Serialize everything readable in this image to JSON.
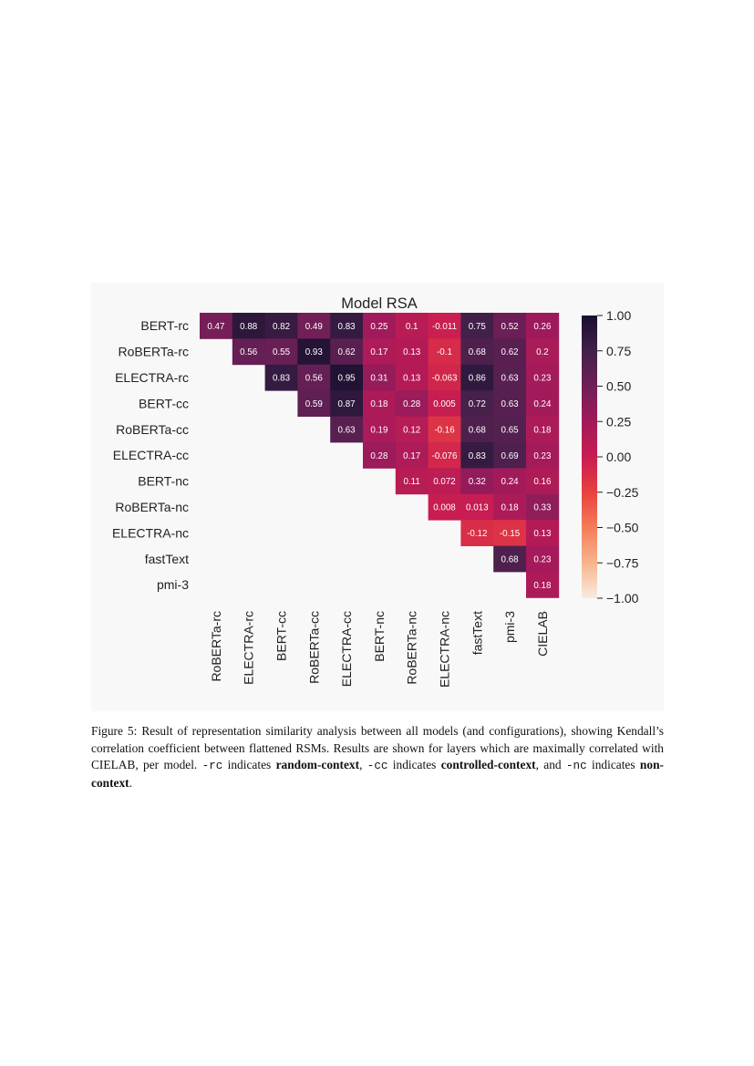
{
  "chart_data": {
    "type": "heatmap",
    "title": "Model RSA",
    "xlabel": "",
    "ylabel": "",
    "rows": [
      "BERT-rc",
      "RoBERTa-rc",
      "ELECTRA-rc",
      "BERT-cc",
      "RoBERTa-cc",
      "ELECTRA-cc",
      "BERT-nc",
      "RoBERTa-nc",
      "ELECTRA-nc",
      "fastText",
      "pmi-3"
    ],
    "columns": [
      "RoBERTa-rc",
      "ELECTRA-rc",
      "BERT-cc",
      "RoBERTa-cc",
      "ELECTRA-cc",
      "BERT-nc",
      "RoBERTa-nc",
      "ELECTRA-nc",
      "fastText",
      "pmi-3",
      "CIELAB"
    ],
    "cells": [
      {
        "row": 0,
        "col": 0,
        "value": 0.47,
        "label": "0.47"
      },
      {
        "row": 0,
        "col": 1,
        "value": 0.88,
        "label": "0.88"
      },
      {
        "row": 0,
        "col": 2,
        "value": 0.82,
        "label": "0.82"
      },
      {
        "row": 0,
        "col": 3,
        "value": 0.49,
        "label": "0.49"
      },
      {
        "row": 0,
        "col": 4,
        "value": 0.83,
        "label": "0.83"
      },
      {
        "row": 0,
        "col": 5,
        "value": 0.25,
        "label": "0.25"
      },
      {
        "row": 0,
        "col": 6,
        "value": 0.1,
        "label": "0.1"
      },
      {
        "row": 0,
        "col": 7,
        "value": -0.011,
        "label": "-0.011"
      },
      {
        "row": 0,
        "col": 8,
        "value": 0.75,
        "label": "0.75"
      },
      {
        "row": 0,
        "col": 9,
        "value": 0.52,
        "label": "0.52"
      },
      {
        "row": 0,
        "col": 10,
        "value": 0.26,
        "label": "0.26"
      },
      {
        "row": 1,
        "col": 1,
        "value": 0.56,
        "label": "0.56"
      },
      {
        "row": 1,
        "col": 2,
        "value": 0.55,
        "label": "0.55"
      },
      {
        "row": 1,
        "col": 3,
        "value": 0.93,
        "label": "0.93"
      },
      {
        "row": 1,
        "col": 4,
        "value": 0.62,
        "label": "0.62"
      },
      {
        "row": 1,
        "col": 5,
        "value": 0.17,
        "label": "0.17"
      },
      {
        "row": 1,
        "col": 6,
        "value": 0.13,
        "label": "0.13"
      },
      {
        "row": 1,
        "col": 7,
        "value": -0.1,
        "label": "-0.1"
      },
      {
        "row": 1,
        "col": 8,
        "value": 0.68,
        "label": "0.68"
      },
      {
        "row": 1,
        "col": 9,
        "value": 0.62,
        "label": "0.62"
      },
      {
        "row": 1,
        "col": 10,
        "value": 0.2,
        "label": "0.2"
      },
      {
        "row": 2,
        "col": 2,
        "value": 0.83,
        "label": "0.83"
      },
      {
        "row": 2,
        "col": 3,
        "value": 0.56,
        "label": "0.56"
      },
      {
        "row": 2,
        "col": 4,
        "value": 0.95,
        "label": "0.95"
      },
      {
        "row": 2,
        "col": 5,
        "value": 0.31,
        "label": "0.31"
      },
      {
        "row": 2,
        "col": 6,
        "value": 0.13,
        "label": "0.13"
      },
      {
        "row": 2,
        "col": 7,
        "value": -0.063,
        "label": "-0.063"
      },
      {
        "row": 2,
        "col": 8,
        "value": 0.86,
        "label": "0.86"
      },
      {
        "row": 2,
        "col": 9,
        "value": 0.63,
        "label": "0.63"
      },
      {
        "row": 2,
        "col": 10,
        "value": 0.23,
        "label": "0.23"
      },
      {
        "row": 3,
        "col": 3,
        "value": 0.59,
        "label": "0.59"
      },
      {
        "row": 3,
        "col": 4,
        "value": 0.87,
        "label": "0.87"
      },
      {
        "row": 3,
        "col": 5,
        "value": 0.18,
        "label": "0.18"
      },
      {
        "row": 3,
        "col": 6,
        "value": 0.28,
        "label": "0.28"
      },
      {
        "row": 3,
        "col": 7,
        "value": 0.005,
        "label": "0.005"
      },
      {
        "row": 3,
        "col": 8,
        "value": 0.72,
        "label": "0.72"
      },
      {
        "row": 3,
        "col": 9,
        "value": 0.63,
        "label": "0.63"
      },
      {
        "row": 3,
        "col": 10,
        "value": 0.24,
        "label": "0.24"
      },
      {
        "row": 4,
        "col": 4,
        "value": 0.63,
        "label": "0.63"
      },
      {
        "row": 4,
        "col": 5,
        "value": 0.19,
        "label": "0.19"
      },
      {
        "row": 4,
        "col": 6,
        "value": 0.12,
        "label": "0.12"
      },
      {
        "row": 4,
        "col": 7,
        "value": -0.16,
        "label": "-0.16"
      },
      {
        "row": 4,
        "col": 8,
        "value": 0.68,
        "label": "0.68"
      },
      {
        "row": 4,
        "col": 9,
        "value": 0.65,
        "label": "0.65"
      },
      {
        "row": 4,
        "col": 10,
        "value": 0.18,
        "label": "0.18"
      },
      {
        "row": 5,
        "col": 5,
        "value": 0.28,
        "label": "0.28"
      },
      {
        "row": 5,
        "col": 6,
        "value": 0.17,
        "label": "0.17"
      },
      {
        "row": 5,
        "col": 7,
        "value": -0.076,
        "label": "-0.076"
      },
      {
        "row": 5,
        "col": 8,
        "value": 0.83,
        "label": "0.83"
      },
      {
        "row": 5,
        "col": 9,
        "value": 0.69,
        "label": "0.69"
      },
      {
        "row": 5,
        "col": 10,
        "value": 0.23,
        "label": "0.23"
      },
      {
        "row": 6,
        "col": 6,
        "value": 0.11,
        "label": "0.11"
      },
      {
        "row": 6,
        "col": 7,
        "value": 0.072,
        "label": "0.072"
      },
      {
        "row": 6,
        "col": 8,
        "value": 0.32,
        "label": "0.32"
      },
      {
        "row": 6,
        "col": 9,
        "value": 0.24,
        "label": "0.24"
      },
      {
        "row": 6,
        "col": 10,
        "value": 0.16,
        "label": "0.16"
      },
      {
        "row": 7,
        "col": 7,
        "value": 0.008,
        "label": "0.008"
      },
      {
        "row": 7,
        "col": 8,
        "value": 0.013,
        "label": "0.013"
      },
      {
        "row": 7,
        "col": 9,
        "value": 0.18,
        "label": "0.18"
      },
      {
        "row": 7,
        "col": 10,
        "value": 0.33,
        "label": "0.33"
      },
      {
        "row": 8,
        "col": 8,
        "value": -0.12,
        "label": "-0.12"
      },
      {
        "row": 8,
        "col": 9,
        "value": -0.15,
        "label": "-0.15"
      },
      {
        "row": 8,
        "col": 10,
        "value": 0.13,
        "label": "0.13"
      },
      {
        "row": 9,
        "col": 9,
        "value": 0.68,
        "label": "0.68"
      },
      {
        "row": 9,
        "col": 10,
        "value": 0.23,
        "label": "0.23"
      },
      {
        "row": 10,
        "col": 10,
        "value": 0.18,
        "label": "0.18"
      }
    ],
    "colorbar": {
      "range": [
        -1,
        1
      ],
      "ticks": [
        1.0,
        0.75,
        0.5,
        0.25,
        0.0,
        -0.25,
        -0.5,
        -0.75,
        -1.0
      ],
      "tick_labels": [
        "1.00",
        "0.75",
        "0.50",
        "0.25",
        "0.00",
        "−0.25",
        "−0.50",
        "−0.75",
        "−1.00"
      ],
      "colormap": "rocket",
      "placement": "right"
    },
    "grid": false
  },
  "caption": {
    "p1": "Figure 5: Result of representation similarity analysis between all models (and configurations), showing Kendall’s correlation coefficient between flattened RSMs. Results are shown for layers which are maximally correlated with CIELAB, per model. ",
    "rc": "-rc",
    "p2": " indicates ",
    "rc_bold": "random-context",
    "p3": ", ",
    "cc": "-cc",
    "p4": " indicates ",
    "cc_bold": "controlled-context",
    "p5": ", and ",
    "nc": "-nc",
    "p6": " indicates ",
    "nc_bold": "non-context",
    "p7": "."
  }
}
